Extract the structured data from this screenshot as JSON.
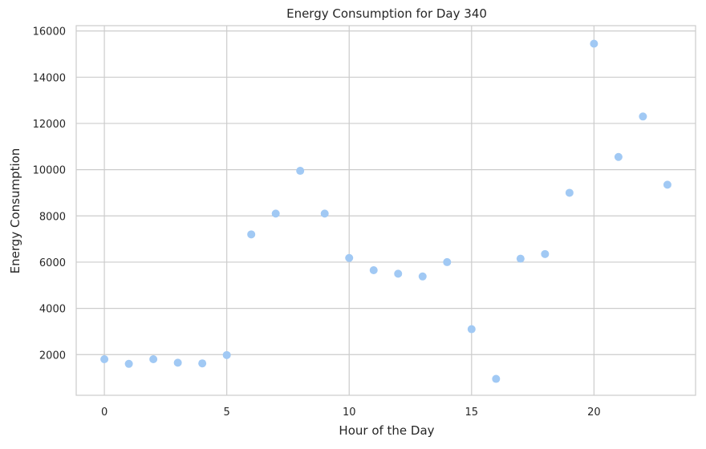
{
  "chart_data": {
    "type": "scatter",
    "title": "Energy Consumption for Day 340",
    "xlabel": "Hour of the Day",
    "ylabel": "Energy Consumption",
    "xlim": [
      -1.15,
      24.15
    ],
    "ylim": [
      240,
      16230
    ],
    "xticks": [
      0,
      5,
      10,
      15,
      20
    ],
    "yticks": [
      2000,
      4000,
      6000,
      8000,
      10000,
      12000,
      14000,
      16000
    ],
    "grid": true,
    "point_color": "#a1c9f4",
    "x": [
      0,
      1,
      2,
      3,
      4,
      5,
      6,
      7,
      8,
      9,
      10,
      11,
      12,
      13,
      14,
      15,
      16,
      17,
      18,
      19,
      20,
      21,
      22,
      23
    ],
    "y": [
      1800,
      1600,
      1800,
      1650,
      1620,
      1980,
      7200,
      8100,
      9950,
      8100,
      6180,
      5650,
      5500,
      5380,
      6000,
      3100,
      950,
      6150,
      6350,
      9000,
      15450,
      10550,
      12300,
      9350
    ]
  }
}
